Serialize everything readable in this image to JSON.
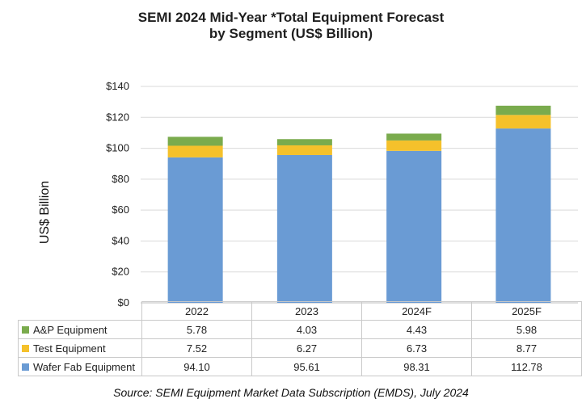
{
  "chart_data": {
    "type": "bar",
    "stacked": true,
    "title_lines": [
      "SEMI 2024 Mid-Year *Total Equipment Forecast",
      "by Segment (US$ Billion)"
    ],
    "ylabel": "US$ Billion",
    "ylim": [
      0,
      140
    ],
    "yticks": [
      "$0",
      "$20",
      "$40",
      "$60",
      "$80",
      "$100",
      "$120",
      "$140"
    ],
    "ytick_values": [
      0,
      20,
      40,
      60,
      80,
      100,
      120,
      140
    ],
    "categories": [
      "2022",
      "2023",
      "2024F",
      "2025F"
    ],
    "series": [
      {
        "name": "Wafer Fab Equipment",
        "color": "#6a9bd4",
        "values": [
          94.1,
          95.61,
          98.31,
          112.78
        ],
        "labels": [
          "94.10",
          "95.61",
          "98.31",
          "112.78"
        ]
      },
      {
        "name": "Test Equipment",
        "color": "#f5c12b",
        "values": [
          7.52,
          6.27,
          6.73,
          8.77
        ],
        "labels": [
          "7.52",
          "6.27",
          "6.73",
          "8.77"
        ]
      },
      {
        "name": "A&P Equipment",
        "color": "#7aab4d",
        "values": [
          5.78,
          4.03,
          4.43,
          5.98
        ],
        "labels": [
          "5.78",
          "4.03",
          "4.43",
          "5.98"
        ]
      }
    ],
    "table_row_order": [
      "A&P Equipment",
      "Test Equipment",
      "Wafer Fab Equipment"
    ],
    "grid": true,
    "source": "Source: SEMI Equipment Market Data Subscription (EMDS), July 2024"
  }
}
